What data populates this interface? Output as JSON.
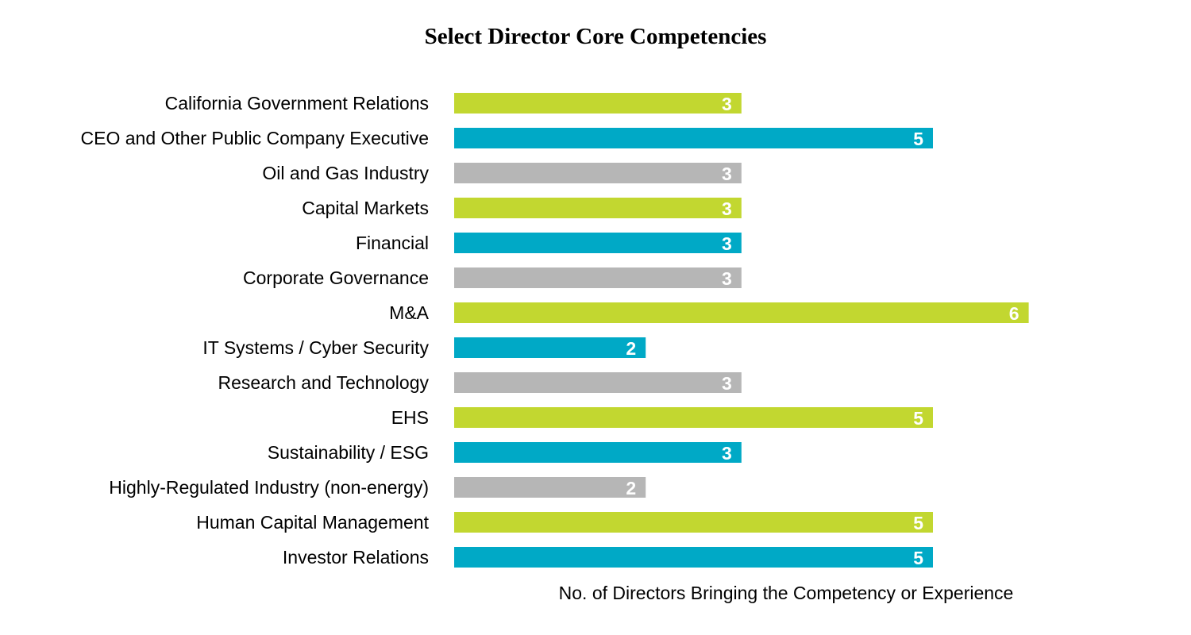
{
  "chart_data": {
    "type": "bar",
    "orientation": "horizontal",
    "title": "Select Director Core Competencies",
    "xlabel": "No. of Directors Bringing the Competency or Experience",
    "ylabel": "",
    "xlim": [
      0,
      6
    ],
    "grid": false,
    "categories": [
      "California Government Relations",
      "CEO and Other Public Company Executive",
      "Oil and Gas Industry",
      "Capital Markets",
      "Financial",
      "Corporate Governance",
      "M&A",
      "IT Systems / Cyber Security",
      "Research and Technology",
      "EHS",
      "Sustainability / ESG",
      "Highly-Regulated Industry (non-energy)",
      "Human Capital Management",
      "Investor Relations"
    ],
    "values": [
      3,
      5,
      3,
      3,
      3,
      3,
      6,
      2,
      3,
      5,
      3,
      2,
      5,
      5
    ],
    "bar_colors": [
      "#c2d730",
      "#00a9c6",
      "#b6b6b6",
      "#c2d730",
      "#00a9c6",
      "#b6b6b6",
      "#c2d730",
      "#00a9c6",
      "#b6b6b6",
      "#c2d730",
      "#00a9c6",
      "#b6b6b6",
      "#c2d730",
      "#00a9c6"
    ],
    "value_label_color": "#ffffff"
  }
}
